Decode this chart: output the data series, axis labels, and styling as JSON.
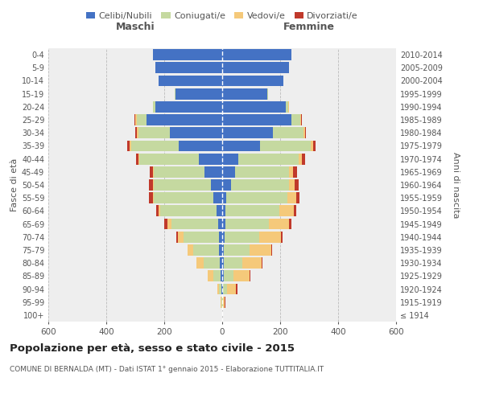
{
  "age_groups": [
    "100+",
    "95-99",
    "90-94",
    "85-89",
    "80-84",
    "75-79",
    "70-74",
    "65-69",
    "60-64",
    "55-59",
    "50-54",
    "45-49",
    "40-44",
    "35-39",
    "30-34",
    "25-29",
    "20-24",
    "15-19",
    "10-14",
    "5-9",
    "0-4"
  ],
  "birth_years": [
    "≤ 1914",
    "1915-1919",
    "1920-1924",
    "1925-1929",
    "1930-1934",
    "1935-1939",
    "1940-1944",
    "1945-1949",
    "1950-1954",
    "1955-1959",
    "1960-1964",
    "1965-1969",
    "1970-1974",
    "1975-1979",
    "1980-1984",
    "1985-1989",
    "1990-1994",
    "1995-1999",
    "2000-2004",
    "2005-2009",
    "2010-2014"
  ],
  "male": {
    "celibi": [
      0,
      1,
      3,
      5,
      8,
      10,
      12,
      15,
      20,
      30,
      40,
      60,
      80,
      150,
      180,
      260,
      230,
      160,
      220,
      230,
      240
    ],
    "coniugati": [
      0,
      2,
      8,
      25,
      55,
      90,
      120,
      160,
      195,
      205,
      195,
      175,
      205,
      165,
      110,
      35,
      10,
      3,
      0,
      0,
      0
    ],
    "vedovi": [
      0,
      2,
      5,
      20,
      25,
      20,
      20,
      15,
      5,
      5,
      5,
      5,
      5,
      5,
      5,
      5,
      0,
      0,
      0,
      0,
      0
    ],
    "divorziati": [
      0,
      0,
      0,
      0,
      0,
      0,
      5,
      10,
      8,
      12,
      12,
      10,
      8,
      8,
      5,
      3,
      0,
      0,
      0,
      0,
      0
    ]
  },
  "female": {
    "nubili": [
      0,
      0,
      3,
      5,
      5,
      5,
      8,
      10,
      12,
      15,
      30,
      45,
      55,
      130,
      175,
      240,
      220,
      155,
      210,
      230,
      240
    ],
    "coniugate": [
      0,
      3,
      15,
      35,
      65,
      90,
      120,
      150,
      185,
      210,
      200,
      185,
      210,
      175,
      105,
      30,
      8,
      3,
      0,
      0,
      0
    ],
    "vedove": [
      0,
      5,
      30,
      55,
      65,
      75,
      75,
      70,
      50,
      30,
      20,
      15,
      10,
      8,
      5,
      3,
      2,
      0,
      0,
      0,
      0
    ],
    "divorziate": [
      0,
      3,
      5,
      3,
      3,
      3,
      5,
      10,
      8,
      12,
      15,
      12,
      10,
      10,
      5,
      3,
      0,
      0,
      0,
      0,
      0
    ]
  },
  "colors": {
    "celibi": "#4472C4",
    "coniugati": "#C5D9A0",
    "vedovi": "#F5C97A",
    "divorziati": "#C0392B"
  },
  "xlim": 600,
  "title": "Popolazione per età, sesso e stato civile - 2015",
  "subtitle": "COMUNE DI BERNALDA (MT) - Dati ISTAT 1° gennaio 2015 - Elaborazione TUTTITALIA.IT",
  "xlabel_left": "Maschi",
  "xlabel_right": "Femmine",
  "ylabel_left": "Fasce di età",
  "ylabel_right": "Anni di nascita",
  "bg_color": "#ffffff",
  "plot_bg": "#eeeeee"
}
